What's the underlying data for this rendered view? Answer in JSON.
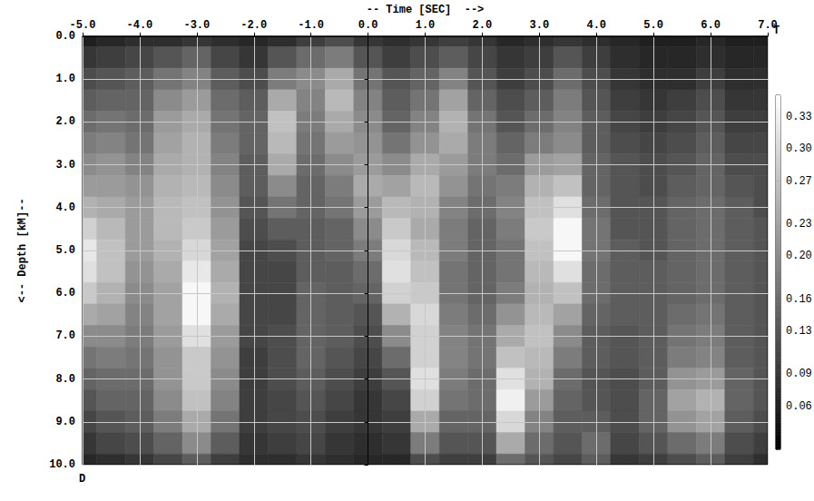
{
  "chart_data": {
    "type": "heatmap",
    "x_label": "-- Time [SEC]  -->",
    "y_label": "<-- Depth [kM]--",
    "annotations": [
      "T",
      "D"
    ],
    "grid": true,
    "xlim": [
      -5,
      7
    ],
    "ylim": [
      0,
      10
    ],
    "xticks": [
      {
        "value": -5,
        "label": "-5.0"
      },
      {
        "value": -4,
        "label": "-4.0"
      },
      {
        "value": -3,
        "label": "-3.0"
      },
      {
        "value": -2,
        "label": "-2.0"
      },
      {
        "value": -1,
        "label": "-1.0"
      },
      {
        "value": 0,
        "label": "0.0"
      },
      {
        "value": 1,
        "label": "1.0"
      },
      {
        "value": 2,
        "label": "2.0"
      },
      {
        "value": 3,
        "label": "3.0"
      },
      {
        "value": 4,
        "label": "4.0"
      },
      {
        "value": 5,
        "label": "5.0"
      },
      {
        "value": 6,
        "label": "6.0"
      },
      {
        "value": 7,
        "label": "7.0"
      }
    ],
    "yticks": [
      {
        "value": 0,
        "label": "0.0"
      },
      {
        "value": 1,
        "label": "1.0"
      },
      {
        "value": 2,
        "label": "2.0"
      },
      {
        "value": 3,
        "label": "3.0"
      },
      {
        "value": 4,
        "label": "4.0"
      },
      {
        "value": 5,
        "label": "5.0"
      },
      {
        "value": 6,
        "label": "6.0"
      },
      {
        "value": 7,
        "label": "7.0"
      },
      {
        "value": 8,
        "label": "8.0"
      },
      {
        "value": 9,
        "label": "9.0"
      },
      {
        "value": 10,
        "label": "10.0"
      }
    ],
    "x": [
      -5,
      -4.5,
      -4,
      -3.5,
      -3,
      -2.5,
      -2,
      -1.5,
      -1,
      -0.5,
      0,
      0.5,
      1,
      1.5,
      2,
      2.5,
      3,
      3.5,
      4,
      4.5,
      5,
      5.5,
      6,
      6.5,
      7
    ],
    "y": [
      0,
      0.5,
      1,
      1.5,
      2,
      2.5,
      3,
      3.5,
      4,
      4.5,
      5,
      5.5,
      6,
      6.5,
      7,
      7.5,
      8,
      8.5,
      9,
      9.5,
      10
    ],
    "cells": [
      [
        0.06,
        0.07,
        0.08,
        0.08,
        0.09,
        0.08,
        0.07,
        0.08,
        0.1,
        0.12,
        0.09,
        0.08,
        0.09,
        0.1,
        0.09,
        0.07,
        0.08,
        0.09,
        0.08,
        0.07,
        0.06,
        0.06,
        0.07,
        0.06,
        0.06
      ],
      [
        0.09,
        0.1,
        0.11,
        0.13,
        0.15,
        0.11,
        0.09,
        0.13,
        0.16,
        0.18,
        0.13,
        0.1,
        0.12,
        0.14,
        0.11,
        0.09,
        0.1,
        0.13,
        0.1,
        0.08,
        0.07,
        0.07,
        0.08,
        0.07,
        0.07
      ],
      [
        0.12,
        0.13,
        0.14,
        0.17,
        0.19,
        0.14,
        0.12,
        0.18,
        0.2,
        0.24,
        0.17,
        0.13,
        0.15,
        0.19,
        0.13,
        0.1,
        0.12,
        0.16,
        0.12,
        0.09,
        0.08,
        0.08,
        0.1,
        0.08,
        0.08
      ],
      [
        0.14,
        0.15,
        0.15,
        0.2,
        0.22,
        0.16,
        0.14,
        0.24,
        0.19,
        0.26,
        0.19,
        0.14,
        0.17,
        0.23,
        0.15,
        0.12,
        0.14,
        0.18,
        0.13,
        0.1,
        0.09,
        0.1,
        0.12,
        0.09,
        0.09
      ],
      [
        0.16,
        0.17,
        0.16,
        0.22,
        0.24,
        0.17,
        0.15,
        0.27,
        0.18,
        0.24,
        0.2,
        0.15,
        0.19,
        0.25,
        0.17,
        0.13,
        0.16,
        0.19,
        0.14,
        0.11,
        0.1,
        0.11,
        0.13,
        0.1,
        0.1
      ],
      [
        0.18,
        0.19,
        0.17,
        0.23,
        0.25,
        0.18,
        0.15,
        0.26,
        0.17,
        0.22,
        0.21,
        0.17,
        0.21,
        0.24,
        0.18,
        0.15,
        0.18,
        0.2,
        0.14,
        0.12,
        0.11,
        0.12,
        0.14,
        0.11,
        0.11
      ],
      [
        0.2,
        0.21,
        0.19,
        0.24,
        0.25,
        0.19,
        0.14,
        0.24,
        0.16,
        0.2,
        0.22,
        0.2,
        0.24,
        0.22,
        0.18,
        0.16,
        0.22,
        0.23,
        0.15,
        0.13,
        0.12,
        0.13,
        0.15,
        0.12,
        0.12
      ],
      [
        0.22,
        0.22,
        0.21,
        0.25,
        0.26,
        0.2,
        0.14,
        0.2,
        0.15,
        0.18,
        0.24,
        0.23,
        0.26,
        0.21,
        0.17,
        0.18,
        0.25,
        0.27,
        0.15,
        0.13,
        0.12,
        0.14,
        0.15,
        0.13,
        0.12
      ],
      [
        0.25,
        0.24,
        0.22,
        0.26,
        0.27,
        0.21,
        0.13,
        0.17,
        0.15,
        0.17,
        0.22,
        0.26,
        0.25,
        0.19,
        0.16,
        0.19,
        0.27,
        0.31,
        0.16,
        0.13,
        0.13,
        0.15,
        0.16,
        0.14,
        0.12
      ],
      [
        0.29,
        0.26,
        0.22,
        0.26,
        0.28,
        0.22,
        0.12,
        0.14,
        0.14,
        0.15,
        0.2,
        0.28,
        0.24,
        0.18,
        0.15,
        0.18,
        0.28,
        0.34,
        0.17,
        0.13,
        0.13,
        0.15,
        0.16,
        0.14,
        0.13
      ],
      [
        0.32,
        0.27,
        0.22,
        0.25,
        0.3,
        0.23,
        0.11,
        0.12,
        0.14,
        0.15,
        0.18,
        0.3,
        0.26,
        0.18,
        0.15,
        0.17,
        0.27,
        0.34,
        0.17,
        0.14,
        0.13,
        0.15,
        0.16,
        0.14,
        0.13
      ],
      [
        0.31,
        0.27,
        0.21,
        0.24,
        0.32,
        0.24,
        0.11,
        0.11,
        0.14,
        0.14,
        0.16,
        0.31,
        0.27,
        0.17,
        0.15,
        0.17,
        0.26,
        0.31,
        0.16,
        0.14,
        0.14,
        0.15,
        0.16,
        0.14,
        0.13
      ],
      [
        0.28,
        0.25,
        0.2,
        0.23,
        0.34,
        0.25,
        0.11,
        0.11,
        0.15,
        0.14,
        0.15,
        0.29,
        0.28,
        0.17,
        0.15,
        0.18,
        0.25,
        0.27,
        0.16,
        0.14,
        0.14,
        0.15,
        0.16,
        0.14,
        0.13
      ],
      [
        0.24,
        0.23,
        0.19,
        0.23,
        0.34,
        0.24,
        0.11,
        0.11,
        0.15,
        0.14,
        0.13,
        0.25,
        0.3,
        0.18,
        0.16,
        0.21,
        0.26,
        0.23,
        0.15,
        0.14,
        0.14,
        0.16,
        0.17,
        0.14,
        0.13
      ],
      [
        0.2,
        0.2,
        0.18,
        0.22,
        0.31,
        0.22,
        0.11,
        0.12,
        0.15,
        0.14,
        0.12,
        0.2,
        0.29,
        0.19,
        0.17,
        0.24,
        0.27,
        0.2,
        0.14,
        0.13,
        0.14,
        0.17,
        0.18,
        0.14,
        0.13
      ],
      [
        0.17,
        0.18,
        0.17,
        0.21,
        0.28,
        0.21,
        0.1,
        0.12,
        0.15,
        0.13,
        0.11,
        0.16,
        0.29,
        0.19,
        0.17,
        0.27,
        0.26,
        0.18,
        0.14,
        0.13,
        0.14,
        0.18,
        0.19,
        0.14,
        0.13
      ],
      [
        0.15,
        0.16,
        0.16,
        0.21,
        0.28,
        0.2,
        0.1,
        0.12,
        0.14,
        0.12,
        0.1,
        0.13,
        0.31,
        0.18,
        0.16,
        0.31,
        0.25,
        0.16,
        0.13,
        0.12,
        0.14,
        0.21,
        0.22,
        0.15,
        0.13
      ],
      [
        0.13,
        0.15,
        0.15,
        0.2,
        0.27,
        0.19,
        0.1,
        0.11,
        0.13,
        0.11,
        0.09,
        0.11,
        0.29,
        0.17,
        0.16,
        0.33,
        0.22,
        0.15,
        0.13,
        0.12,
        0.15,
        0.23,
        0.25,
        0.15,
        0.13
      ],
      [
        0.11,
        0.13,
        0.14,
        0.18,
        0.24,
        0.17,
        0.1,
        0.11,
        0.12,
        0.1,
        0.09,
        0.1,
        0.24,
        0.15,
        0.15,
        0.3,
        0.19,
        0.14,
        0.14,
        0.12,
        0.15,
        0.21,
        0.23,
        0.14,
        0.12
      ],
      [
        0.09,
        0.11,
        0.12,
        0.15,
        0.2,
        0.14,
        0.09,
        0.1,
        0.11,
        0.09,
        0.08,
        0.09,
        0.18,
        0.13,
        0.13,
        0.24,
        0.16,
        0.13,
        0.16,
        0.11,
        0.13,
        0.16,
        0.18,
        0.12,
        0.1
      ],
      [
        0.07,
        0.08,
        0.09,
        0.11,
        0.14,
        0.1,
        0.08,
        0.08,
        0.09,
        0.08,
        0.07,
        0.07,
        0.12,
        0.1,
        0.1,
        0.16,
        0.13,
        0.11,
        0.14,
        0.09,
        0.1,
        0.12,
        0.14,
        0.1,
        0.08
      ]
    ],
    "colorbar": {
      "range": [
        0.02,
        0.35
      ],
      "ticks": [
        {
          "value": 0.06,
          "label": "0.06"
        },
        {
          "value": 0.09,
          "label": "0.09"
        },
        {
          "value": 0.13,
          "label": "0.13"
        },
        {
          "value": 0.16,
          "label": "0.16"
        },
        {
          "value": 0.2,
          "label": "0.20"
        },
        {
          "value": 0.23,
          "label": "0.23"
        },
        {
          "value": 0.27,
          "label": "0.27"
        },
        {
          "value": 0.3,
          "label": "0.30"
        },
        {
          "value": 0.33,
          "label": "0.33"
        }
      ]
    }
  }
}
